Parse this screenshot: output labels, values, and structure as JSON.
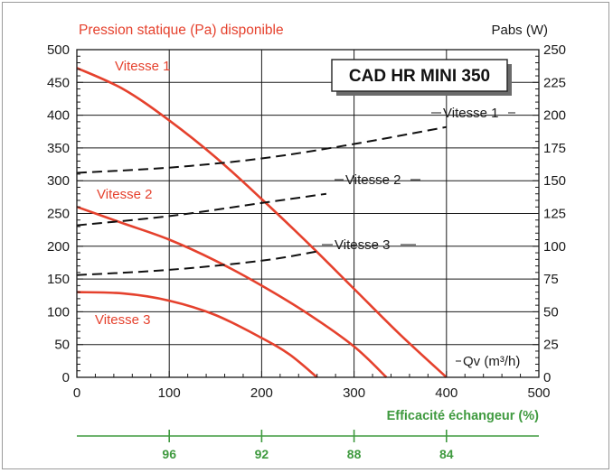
{
  "chart_data": {
    "type": "line",
    "title": "CAD HR MINI 350",
    "left_axis_label": "Pression statique (Pa) disponible",
    "right_axis_label": "Pabs (W)",
    "x_label": "Qv (m³/h)",
    "xlim": [
      0,
      500
    ],
    "ylim_left": [
      0,
      500
    ],
    "ylim_right": [
      0,
      250
    ],
    "x_ticks": [
      0,
      100,
      200,
      300,
      400,
      500
    ],
    "y_left_ticks": [
      0,
      50,
      100,
      150,
      200,
      250,
      300,
      350,
      400,
      450,
      500
    ],
    "y_right_ticks": [
      0,
      25,
      50,
      75,
      100,
      125,
      150,
      175,
      200,
      225,
      250
    ],
    "grid": true,
    "pressure_series": [
      {
        "name": "Vitesse 1",
        "axis": "left",
        "style": "solid",
        "color": "#e5412d",
        "x": [
          0,
          50,
          100,
          150,
          200,
          250,
          300,
          350,
          400
        ],
        "y": [
          472,
          440,
          392,
          336,
          272,
          205,
          135,
          65,
          0
        ]
      },
      {
        "name": "Vitesse 2",
        "axis": "left",
        "style": "solid",
        "color": "#e5412d",
        "x": [
          0,
          50,
          100,
          150,
          200,
          250,
          300,
          335
        ],
        "y": [
          260,
          235,
          210,
          178,
          140,
          97,
          47,
          0
        ]
      },
      {
        "name": "Vitesse 3",
        "axis": "left",
        "style": "solid",
        "color": "#e5412d",
        "x": [
          0,
          50,
          100,
          150,
          200,
          230,
          260
        ],
        "y": [
          130,
          128,
          117,
          95,
          60,
          35,
          0
        ]
      }
    ],
    "power_series": [
      {
        "name": "Vitesse 1",
        "axis": "right",
        "style": "dashed",
        "color": "#111111",
        "x": [
          0,
          100,
          200,
          300,
          400
        ],
        "y": [
          156,
          160,
          167,
          178,
          191
        ]
      },
      {
        "name": "Vitesse 2",
        "axis": "right",
        "style": "dashed",
        "color": "#111111",
        "x": [
          0,
          100,
          200,
          270
        ],
        "y": [
          116,
          123,
          133,
          140
        ]
      },
      {
        "name": "Vitesse 3",
        "axis": "right",
        "style": "dashed",
        "color": "#111111",
        "x": [
          0,
          100,
          200,
          260
        ],
        "y": [
          78,
          82,
          89,
          96
        ]
      }
    ],
    "efficiency_axis": {
      "label": "Efficacité échangeur (%)",
      "ticks": [
        {
          "x": 100,
          "label": "96"
        },
        {
          "x": 200,
          "label": "92"
        },
        {
          "x": 300,
          "label": "88"
        },
        {
          "x": 400,
          "label": "84"
        }
      ]
    },
    "colors": {
      "pressure": "#e5412d",
      "power": "#111111",
      "efficiency": "#3f9a3f",
      "grid": "#1a1a1a"
    }
  }
}
